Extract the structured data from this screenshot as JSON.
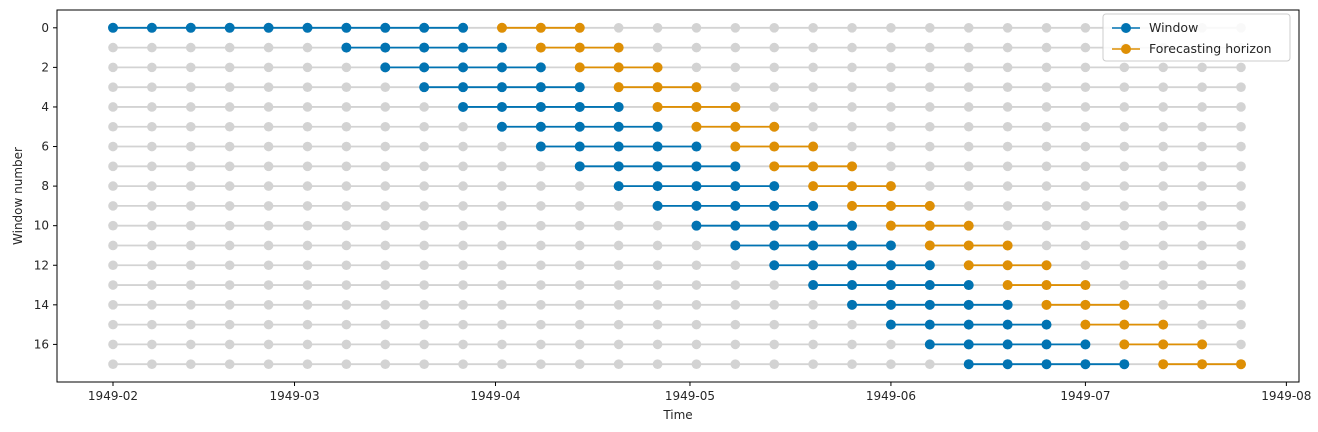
{
  "chart_data": {
    "type": "line",
    "xlabel": "Time",
    "ylabel": "Window number",
    "x_ticks": [
      "1949-02",
      "1949-03",
      "1949-04",
      "1949-05",
      "1949-06",
      "1949-07",
      "1949-08"
    ],
    "y_ticks": [
      "0",
      "2",
      "4",
      "6",
      "8",
      "10",
      "12",
      "14",
      "16"
    ],
    "ylim": [
      -0.9,
      17.9
    ],
    "y_inverted": true,
    "grid": false,
    "legend_placement": "top-right",
    "x_points": [
      "1949-02-01",
      "1949-02-07",
      "1949-02-13",
      "1949-02-19",
      "1949-02-25",
      "1949-03-03",
      "1949-03-09",
      "1949-03-15",
      "1949-03-21",
      "1949-03-27",
      "1949-04-02",
      "1949-04-08",
      "1949-04-14",
      "1949-04-20",
      "1949-04-26",
      "1949-05-02",
      "1949-05-08",
      "1949-05-14",
      "1949-05-20",
      "1949-05-26",
      "1949-06-01",
      "1949-06-07",
      "1949-06-13",
      "1949-06-19",
      "1949-06-25",
      "1949-07-01",
      "1949-07-07",
      "1949-07-13",
      "1949-07-19",
      "1949-07-25"
    ],
    "windows": [
      {
        "number": 0,
        "window": [
          0,
          9
        ],
        "horizon": [
          10,
          12
        ]
      },
      {
        "number": 1,
        "window": [
          6,
          10
        ],
        "horizon": [
          11,
          13
        ]
      },
      {
        "number": 2,
        "window": [
          7,
          11
        ],
        "horizon": [
          12,
          14
        ]
      },
      {
        "number": 3,
        "window": [
          8,
          12
        ],
        "horizon": [
          13,
          15
        ]
      },
      {
        "number": 4,
        "window": [
          9,
          13
        ],
        "horizon": [
          14,
          16
        ]
      },
      {
        "number": 5,
        "window": [
          10,
          14
        ],
        "horizon": [
          15,
          17
        ]
      },
      {
        "number": 6,
        "window": [
          11,
          15
        ],
        "horizon": [
          16,
          18
        ]
      },
      {
        "number": 7,
        "window": [
          12,
          16
        ],
        "horizon": [
          17,
          19
        ]
      },
      {
        "number": 8,
        "window": [
          13,
          17
        ],
        "horizon": [
          18,
          20
        ]
      },
      {
        "number": 9,
        "window": [
          14,
          18
        ],
        "horizon": [
          19,
          21
        ]
      },
      {
        "number": 10,
        "window": [
          15,
          19
        ],
        "horizon": [
          20,
          22
        ]
      },
      {
        "number": 11,
        "window": [
          16,
          20
        ],
        "horizon": [
          21,
          23
        ]
      },
      {
        "number": 12,
        "window": [
          17,
          21
        ],
        "horizon": [
          22,
          24
        ]
      },
      {
        "number": 13,
        "window": [
          18,
          22
        ],
        "horizon": [
          23,
          25
        ]
      },
      {
        "number": 14,
        "window": [
          19,
          23
        ],
        "horizon": [
          24,
          26
        ]
      },
      {
        "number": 15,
        "window": [
          20,
          24
        ],
        "horizon": [
          25,
          27
        ]
      },
      {
        "number": 16,
        "window": [
          21,
          25
        ],
        "horizon": [
          26,
          28
        ]
      },
      {
        "number": 17,
        "window": [
          22,
          26
        ],
        "horizon": [
          27,
          29
        ]
      }
    ],
    "series": [
      {
        "name": "Window",
        "color": "#0173b2"
      },
      {
        "name": "Forecasting horizon",
        "color": "#de8f05"
      }
    ],
    "background_color": "#d3d3d3"
  }
}
